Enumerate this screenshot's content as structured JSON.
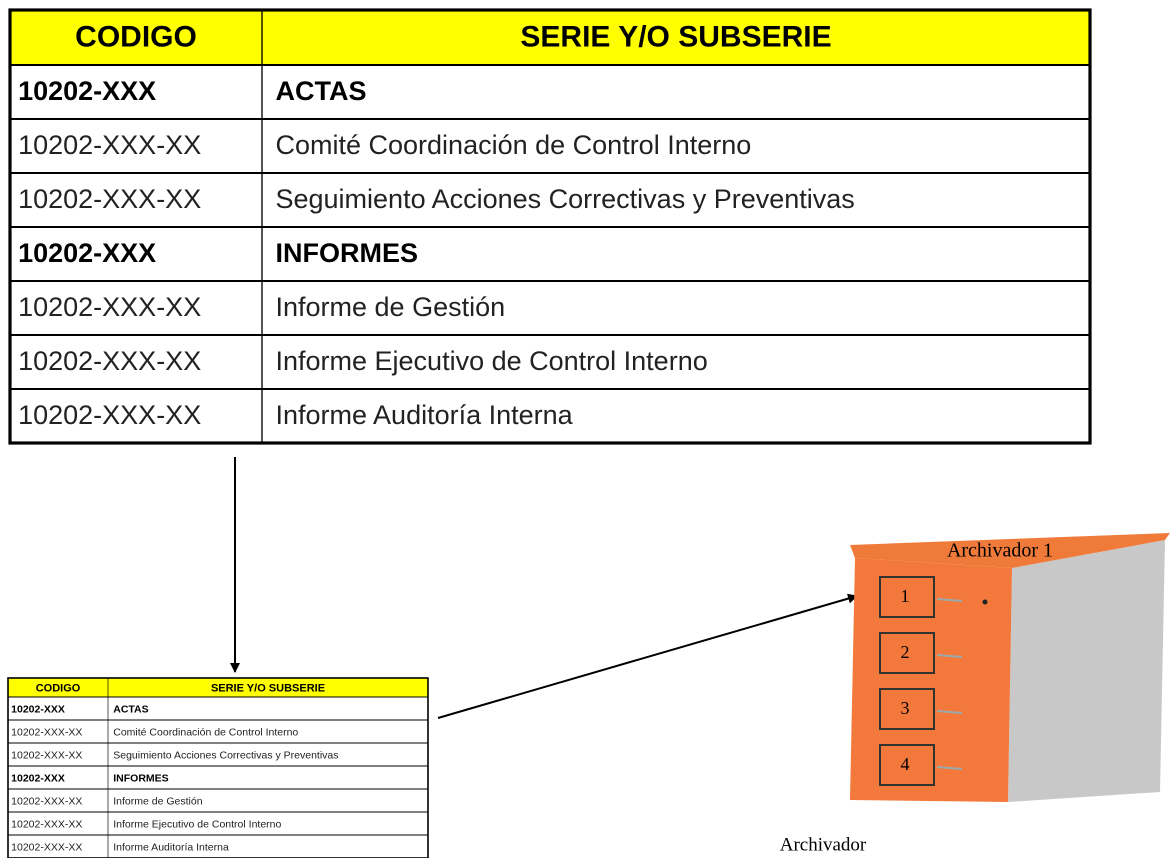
{
  "table": {
    "header": [
      "CODIGO",
      "SERIE Y/O SUBSERIE"
    ],
    "rows": [
      {
        "code": "10202-XXX",
        "name": "ACTAS",
        "bold": true
      },
      {
        "code": "10202-XXX-XX",
        "name": "Comité Coordinación de Control Interno",
        "bold": false
      },
      {
        "code": "10202-XXX-XX",
        "name": "Seguimiento Acciones Correctivas y Preventivas",
        "bold": false
      },
      {
        "code": "10202-XXX",
        "name": "INFORMES",
        "bold": true
      },
      {
        "code": "10202-XXX-XX",
        "name": "Informe de Gestión",
        "bold": false
      },
      {
        "code": "10202-XXX-XX",
        "name": "Informe Ejecutivo de Control Interno",
        "bold": false
      },
      {
        "code": "10202-XXX-XX",
        "name": "Informe Auditoría Interna",
        "bold": false
      }
    ]
  },
  "cabinet": {
    "title": "Archivador 1",
    "caption": "Archivador",
    "drawers": [
      "1",
      "2",
      "3",
      "4"
    ]
  }
}
